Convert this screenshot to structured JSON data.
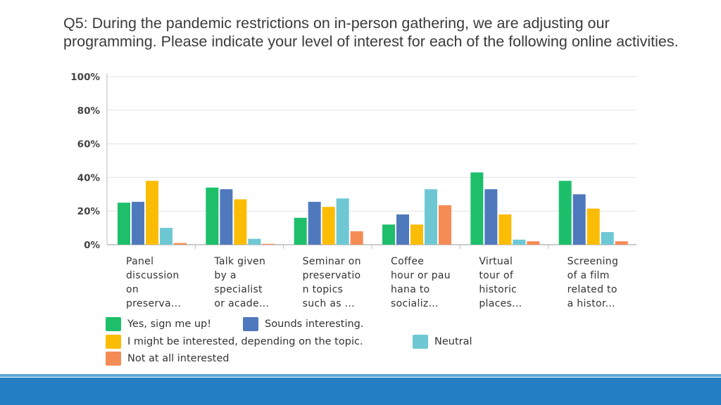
{
  "title_lines": [
    "Q5: During the pandemic restrictions on in-person gathering, we are adjusting our",
    "programming.  Please indicate your level of interest for each of the following online activities."
  ],
  "colors": {
    "yes": "#1dbf6b",
    "sounds": "#4f79bd",
    "might": "#fbbc05",
    "neutral": "#6dc8d4",
    "not": "#f58b55",
    "grid": "#e3e3e3",
    "axis": "#bbbbbb",
    "tick_text": "#444444",
    "footer": "#2480c2"
  },
  "chart_data": {
    "type": "bar",
    "title": "",
    "ylim": [
      0,
      100
    ],
    "yticks": [
      0,
      20,
      40,
      60,
      80,
      100
    ],
    "ytick_labels": [
      "0%",
      "20%",
      "40%",
      "60%",
      "80%",
      "100%"
    ],
    "categories": [
      [
        "Panel",
        "discussion",
        "on",
        "preserva..."
      ],
      [
        "Talk given",
        "by a",
        "specialist",
        "or acade..."
      ],
      [
        "Seminar on",
        "preservatio",
        "n topics",
        "such as ..."
      ],
      [
        "Coffee",
        "hour or pau",
        "hana to",
        "socializ..."
      ],
      [
        "Virtual",
        "tour of",
        "historic",
        "places..."
      ],
      [
        "Screening",
        "of a film",
        "related to",
        "a histor..."
      ]
    ],
    "series": [
      {
        "name": "Yes, sign me up!",
        "key": "yes",
        "values": [
          25,
          34,
          16,
          12,
          43,
          38
        ]
      },
      {
        "name": "Sounds interesting.",
        "key": "sounds",
        "values": [
          25.5,
          33,
          25.5,
          18,
          33,
          30
        ]
      },
      {
        "name": "I might be interested, depending on the topic.",
        "key": "might",
        "values": [
          38,
          27,
          22.5,
          12,
          18,
          21.5
        ]
      },
      {
        "name": "Neutral",
        "key": "neutral",
        "values": [
          10,
          3.5,
          27.5,
          33,
          3,
          7.5
        ]
      },
      {
        "name": "Not at all interested",
        "key": "not",
        "values": [
          1,
          0.5,
          8,
          23.5,
          2,
          2
        ]
      }
    ]
  }
}
